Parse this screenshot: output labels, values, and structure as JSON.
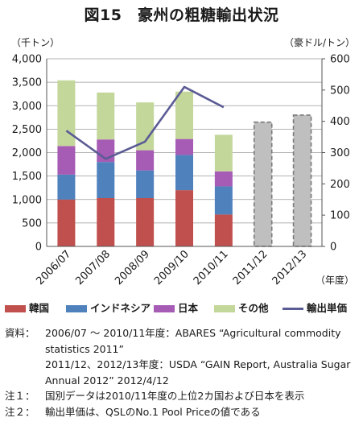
{
  "title": "図15　豪州の粗糖輸出状況",
  "unit_left": "（千トン）",
  "unit_right": "（豪ドル/トン）",
  "x_axis_unit": "（年度）",
  "colors": {
    "korea": "#c0504d",
    "indonesia": "#4f81bd",
    "japan": "#a65bb5",
    "other": "#c4d79b",
    "forecast": "#bfbfbf",
    "price_line": "#5b5b95"
  },
  "chart_data": {
    "type": "bar",
    "stacked": true,
    "categories": [
      "2006/07",
      "2007/08",
      "2008/09",
      "2009/10",
      "2010/11",
      "2011/12",
      "2012/13"
    ],
    "series": [
      {
        "name": "韓国",
        "values": [
          1000,
          1030,
          1030,
          1200,
          680,
          null,
          null
        ]
      },
      {
        "name": "インドネシア",
        "values": [
          530,
          770,
          590,
          750,
          600,
          null,
          null
        ]
      },
      {
        "name": "日本",
        "values": [
          610,
          480,
          430,
          340,
          320,
          null,
          null
        ]
      },
      {
        "name": "その他",
        "values": [
          1400,
          1000,
          1020,
          1010,
          780,
          null,
          null
        ]
      },
      {
        "name": "forecast",
        "values": [
          null,
          null,
          null,
          null,
          null,
          2650,
          2800
        ]
      }
    ],
    "line_series": {
      "name": "輸出単価",
      "axis": "right",
      "values": [
        370,
        280,
        335,
        510,
        445,
        null,
        null
      ]
    },
    "ylim": [
      0,
      4000
    ],
    "yticks": [
      "0",
      "500",
      "1,000",
      "1,500",
      "2,000",
      "2,500",
      "3,000",
      "3,500",
      "4,000"
    ],
    "ylim_right": [
      0,
      600
    ],
    "yticks_right": [
      "0",
      "100",
      "200",
      "300",
      "400",
      "500",
      "600"
    ],
    "grid": true
  },
  "legend": [
    {
      "label": "韓国",
      "kind": "bar",
      "color": "#c0504d"
    },
    {
      "label": "インドネシア",
      "kind": "bar",
      "color": "#4f81bd"
    },
    {
      "label": "日本",
      "kind": "bar",
      "color": "#a65bb5"
    },
    {
      "label": "その他",
      "kind": "bar",
      "color": "#c4d79b"
    },
    {
      "label": "輸出単価",
      "kind": "line",
      "color": "#5b5b95"
    }
  ],
  "notes": [
    {
      "label": "資料：",
      "text": "2006/07 ～ 2010/11年度：ABARES “Agricultural commodity statistics 2011”"
    },
    {
      "label": "",
      "text": "2011/12、2012/13年度：USDA “GAIN Report, Australia Sugar Annual 2012” 2012/4/12"
    },
    {
      "label": "注１：",
      "text": "国別データは2010/11年度の上位2カ国および日本を表示"
    },
    {
      "label": "注２：",
      "text": "輸出単価は、QSLのNo.1 Pool Priceの値である"
    }
  ]
}
